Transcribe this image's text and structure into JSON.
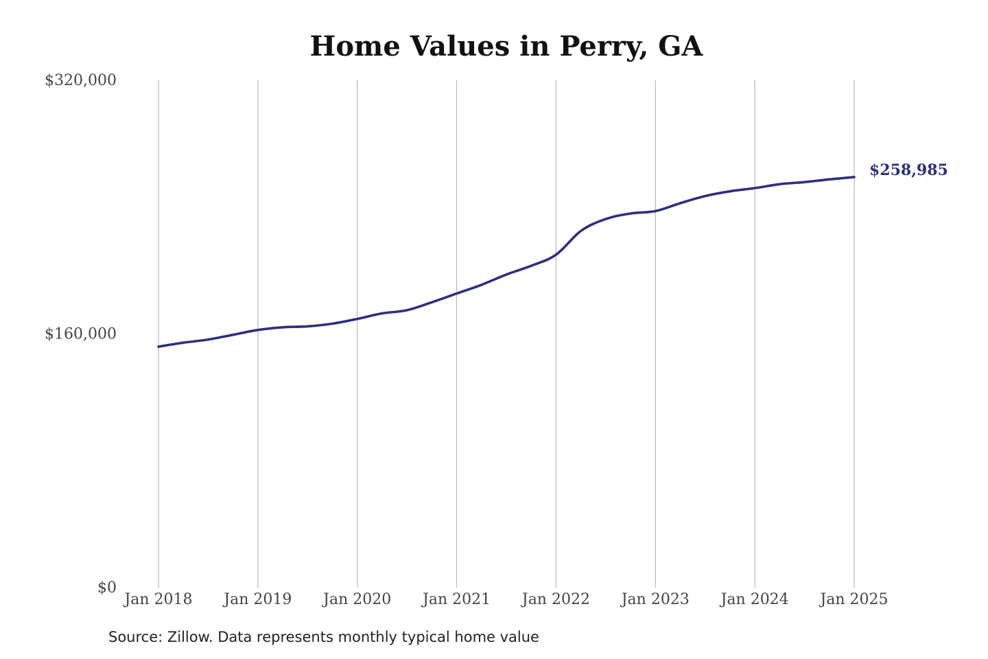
{
  "chart_data": {
    "type": "line",
    "title": "Home Values in Perry, GA",
    "xlabel": "",
    "ylabel": "",
    "x_tick_labels": [
      "Jan 2018",
      "Jan 2019",
      "Jan 2020",
      "Jan 2021",
      "Jan 2022",
      "Jan 2023",
      "Jan 2024",
      "Jan 2025"
    ],
    "y_tick_labels": [
      "$0",
      "$160,000",
      "$320,000"
    ],
    "y_ticks": [
      0,
      160000,
      320000
    ],
    "ylim": [
      0,
      320000
    ],
    "xlim": [
      2018,
      2025
    ],
    "grid": "vertical",
    "series": [
      {
        "name": "Typical home value",
        "color": "#2e2e80",
        "x": [
          2018.0,
          2018.25,
          2018.5,
          2018.75,
          2019.0,
          2019.25,
          2019.5,
          2019.75,
          2020.0,
          2020.25,
          2020.5,
          2020.75,
          2021.0,
          2021.25,
          2021.5,
          2021.75,
          2022.0,
          2022.25,
          2022.5,
          2022.75,
          2023.0,
          2023.25,
          2023.5,
          2023.75,
          2024.0,
          2024.25,
          2024.5,
          2024.75,
          2025.0
        ],
        "values": [
          152000,
          154500,
          156500,
          159500,
          162500,
          164200,
          164800,
          166500,
          169500,
          173000,
          175000,
          180000,
          185500,
          191000,
          197500,
          203000,
          210000,
          225000,
          232500,
          236000,
          237500,
          242500,
          247000,
          250000,
          252000,
          254500,
          255800,
          257500,
          258985
        ]
      }
    ],
    "end_label": "$258,985",
    "source": "Source: Zillow. Data represents monthly typical home value"
  }
}
